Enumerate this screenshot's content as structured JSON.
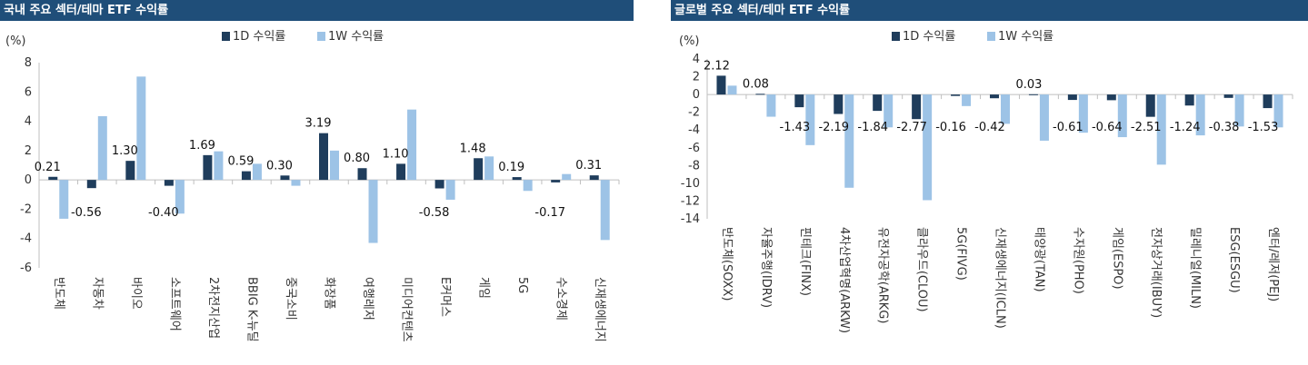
{
  "colors": {
    "title_bar": "#1f4e79",
    "series_1d": "#1f3d5c",
    "series_1w": "#9dc3e6",
    "axis": "#bfbfbf"
  },
  "chart_data": [
    {
      "type": "bar",
      "title": "국내 주요 섹터/테마 ETF 수익률",
      "unit": "(%)",
      "ylim": [
        -6,
        8
      ],
      "yticks": [
        8,
        6,
        4,
        2,
        0,
        -2,
        -4,
        -6
      ],
      "legend_position": "top",
      "categories": [
        "반도체",
        "자동차",
        "바이오",
        "소프트웨어",
        "2차전지산업",
        "BBIG K-뉴딜",
        "중국소비",
        "화장품",
        "여행레저",
        "미디어컨텐츠",
        "E커머스",
        "게임",
        "5G",
        "수소경제",
        "신재생에너지"
      ],
      "series": [
        {
          "name": "1D 수익률",
          "values": [
            0.21,
            -0.56,
            1.3,
            -0.4,
            1.69,
            0.59,
            0.3,
            3.19,
            0.8,
            1.1,
            -0.58,
            1.48,
            0.19,
            -0.17,
            0.31
          ]
        },
        {
          "name": "1W 수익률",
          "values": [
            -2.65,
            4.35,
            7.05,
            -2.3,
            1.95,
            1.1,
            -0.4,
            2.0,
            -4.3,
            4.8,
            -1.35,
            1.6,
            -0.75,
            0.4,
            -4.1
          ]
        }
      ],
      "data_labels": [
        "0.21",
        "-0.56",
        "1.30",
        "-0.40",
        "1.69",
        "0.59",
        "0.30",
        "3.19",
        "0.80",
        "1.10",
        "-0.58",
        "1.48",
        "0.19",
        "-0.17",
        "0.31"
      ]
    },
    {
      "type": "bar",
      "title": "글로벌 주요 섹터/테마 ETF 수익률",
      "unit": "(%)",
      "ylim": [
        -14,
        4
      ],
      "yticks": [
        4,
        2,
        0,
        -2,
        -4,
        -6,
        -8,
        -10,
        -12,
        -14
      ],
      "legend_position": "top",
      "categories": [
        "반도체(SOXX)",
        "자율주행(IDRV)",
        "핀테크(FINX)",
        "4차산업혁명(ARKW)",
        "유전자공학(ARKG)",
        "클라우드(CLOU)",
        "5G(FIVG)",
        "신재생에너지(ICLN)",
        "태양광(TAN)",
        "수자원(PHO)",
        "게임(ESPO)",
        "전자상거래(IBUY)",
        "밀레니얼(MILN)",
        "ESG(ESGU)",
        "엔터/레저(PEJ)"
      ],
      "series": [
        {
          "name": "1D 수익률",
          "values": [
            2.12,
            0.08,
            -1.43,
            -2.19,
            -1.84,
            -2.77,
            -0.16,
            -0.42,
            0.03,
            -0.61,
            -0.64,
            -2.51,
            -1.24,
            -0.38,
            -1.53
          ]
        },
        {
          "name": "1W 수익률",
          "values": [
            1.0,
            -2.5,
            -5.7,
            -10.5,
            -3.7,
            -11.9,
            -1.3,
            -3.3,
            -5.2,
            -4.3,
            -4.8,
            -7.9,
            -4.6,
            -3.6,
            -3.7
          ]
        }
      ],
      "data_labels": [
        "2.12",
        "0.08",
        "-1.43",
        "-2.19",
        "-1.84",
        "-2.77",
        "-0.16",
        "-0.42",
        "0.03",
        "-0.61",
        "-0.64",
        "-2.51",
        "-1.24",
        "-0.38",
        "-1.53"
      ]
    }
  ]
}
